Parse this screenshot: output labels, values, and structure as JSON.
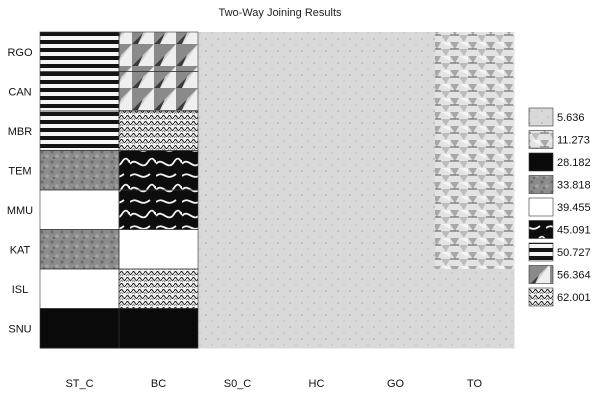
{
  "chart_data": {
    "type": "heatmap",
    "title": "Two-Way Joining Results",
    "rows": [
      "RGO",
      "CAN",
      "MBR",
      "TEM",
      "MMU",
      "KAT",
      "ISL",
      "SNU"
    ],
    "columns": [
      "ST_C",
      "BC",
      "S0_C",
      "HC",
      "GO",
      "TO"
    ],
    "legend": {
      "placement": "right",
      "levels": [
        "5.636",
        "11.273",
        "28.182",
        "33.818",
        "39.455",
        "45.091",
        "50.727",
        "56.364",
        "62.001"
      ]
    },
    "values": [
      [
        50.727,
        56.364,
        5.636,
        5.636,
        5.636,
        11.273
      ],
      [
        50.727,
        56.364,
        5.636,
        5.636,
        5.636,
        11.273
      ],
      [
        50.727,
        62.001,
        5.636,
        5.636,
        5.636,
        11.273
      ],
      [
        33.818,
        45.091,
        5.636,
        5.636,
        5.636,
        11.273
      ],
      [
        39.455,
        45.091,
        5.636,
        5.636,
        5.636,
        11.273
      ],
      [
        33.818,
        39.455,
        5.636,
        5.636,
        5.636,
        11.273
      ],
      [
        39.455,
        62.001,
        5.636,
        5.636,
        5.636,
        5.636
      ],
      [
        28.182,
        28.182,
        5.636,
        5.636,
        5.636,
        5.636
      ]
    ]
  }
}
